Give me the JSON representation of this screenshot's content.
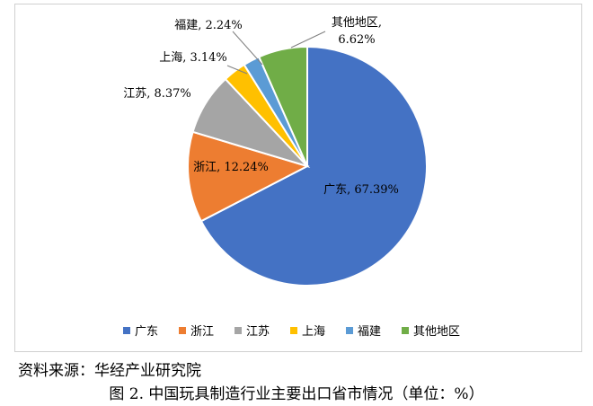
{
  "chart_data": {
    "type": "pie",
    "categories": [
      "广东",
      "浙江",
      "江苏",
      "上海",
      "福建",
      "其他地区"
    ],
    "values": [
      67.39,
      12.24,
      8.37,
      3.14,
      2.24,
      6.62
    ],
    "labels": [
      "广东, 67.39%",
      "浙江, 12.24%",
      "江苏, 8.37%",
      "上海, 3.14%",
      "福建, 2.24%",
      "其他地区,\n6.62%"
    ],
    "colors": [
      "#4472C4",
      "#ED7D31",
      "#A5A5A5",
      "#FFC000",
      "#5B9BD5",
      "#70AD47"
    ],
    "legend_position": "bottom",
    "unit": "%"
  },
  "source_note": "资料来源：华经产业研究院",
  "caption": "图 2. 中国玩具制造行业主要出口省市情况（单位：%）"
}
